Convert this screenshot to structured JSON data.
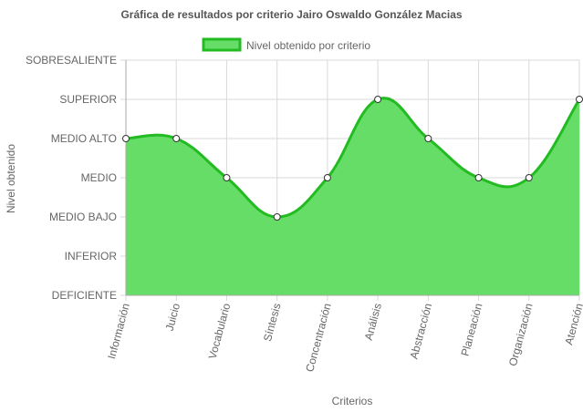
{
  "chart_data": {
    "type": "area",
    "title": "Gráfica de resultados por criterio Jairo Oswaldo González Macias",
    "xlabel": "Criterios",
    "ylabel": "Nivel obtenido",
    "y_levels": [
      "DEFICIENTE",
      "INFERIOR",
      "MEDIO BAJO",
      "MEDIO",
      "MEDIO ALTO",
      "SUPERIOR",
      "SOBRESALIENTE"
    ],
    "ylim": [
      0,
      6
    ],
    "categories": [
      "Información",
      "Juicio",
      "Vocabulario",
      "Síntesis",
      "Concentración",
      "Análisis",
      "Abstracción",
      "Planeación",
      "Organización",
      "Atención"
    ],
    "series": [
      {
        "name": "Nivel obtenido por criterio",
        "values": [
          4,
          4,
          3,
          2,
          3,
          5,
          4,
          3,
          3,
          5
        ]
      }
    ],
    "legend_position": "top",
    "grid": true,
    "colors": {
      "fill": "#66dd66",
      "line": "#22bb22",
      "grid": "#d9d9d9",
      "point_fill": "#ffffff",
      "point_stroke": "#333333"
    }
  }
}
